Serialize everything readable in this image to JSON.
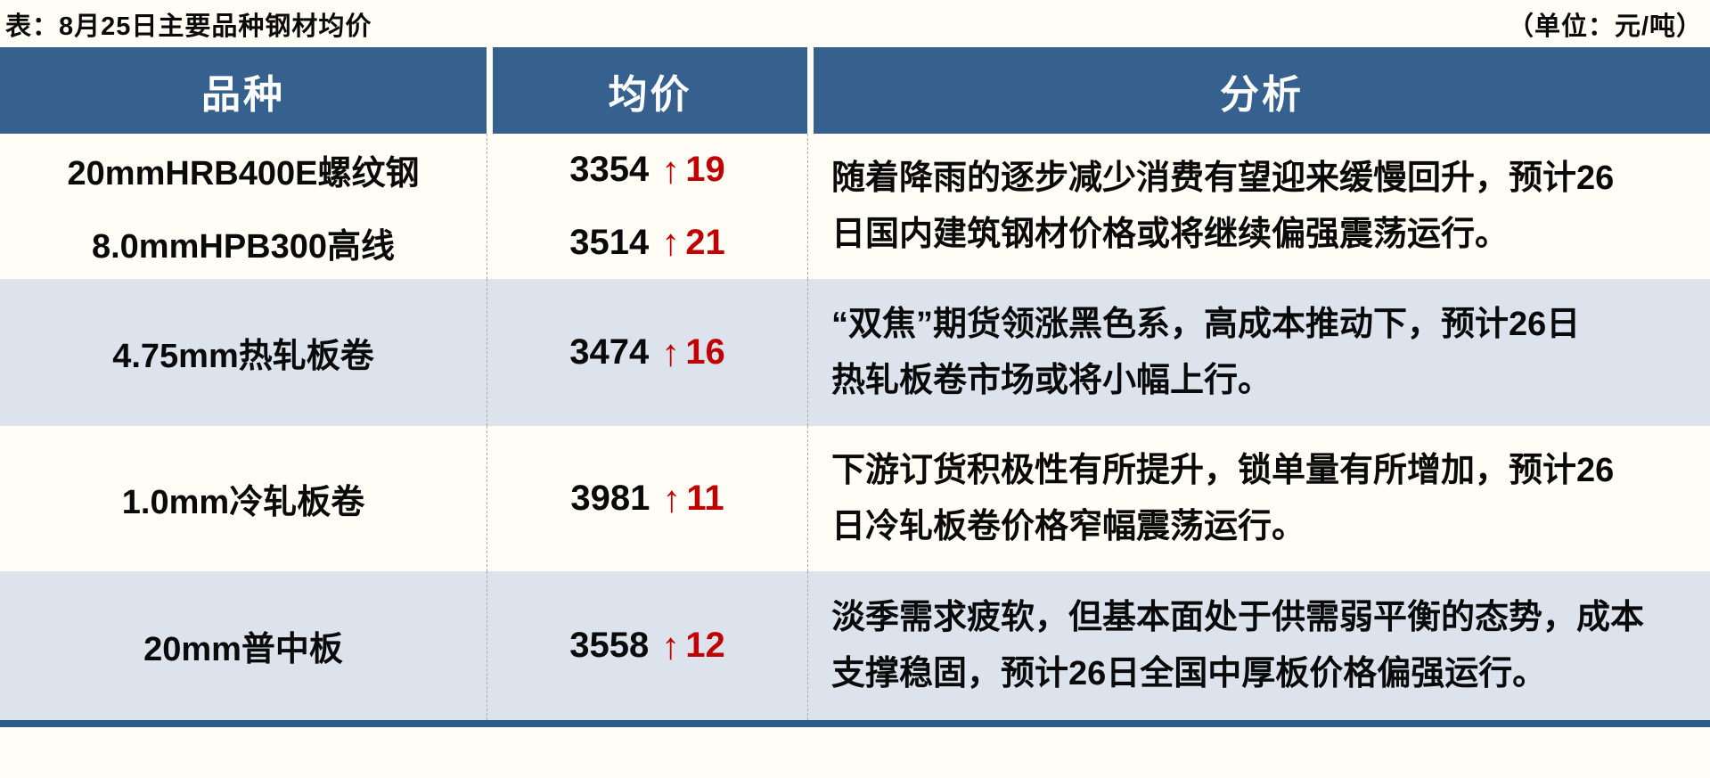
{
  "page": {
    "title": "表：8月25日主要品种钢材均价",
    "unit_label": "（单位：元/吨）"
  },
  "table": {
    "headers": {
      "variety": "品种",
      "price": "均价",
      "analysis": "分析"
    },
    "up_arrow_icon": "↑",
    "rows": [
      {
        "products": [
          {
            "name": "20mmHRB400E螺纹钢",
            "price": "3354",
            "change": "19"
          },
          {
            "name": "8.0mmHPB300高线",
            "price": "3514",
            "change": "21"
          }
        ],
        "analysis_lines": [
          "随着降雨的逐步减少消费有望迎来缓慢回升，预计26",
          "日国内建筑钢材价格或将继续偏强震荡运行。"
        ]
      },
      {
        "products": [
          {
            "name": "4.75mm热轧板卷",
            "price": "3474",
            "change": "16"
          }
        ],
        "analysis_lines": [
          "“双焦”期货领涨黑色系，高成本推动下，预计26日",
          "热轧板卷市场或将小幅上行。"
        ]
      },
      {
        "products": [
          {
            "name": "1.0mm冷轧板卷",
            "price": "3981",
            "change": "11"
          }
        ],
        "analysis_lines": [
          "下游订货积极性有所提升，锁单量有所增加，预计26",
          "日冷轧板卷价格窄幅震荡运行。"
        ]
      },
      {
        "products": [
          {
            "name": "20mm普中板",
            "price": "3558",
            "change": "12"
          }
        ],
        "analysis_lines": [
          "淡季需求疲软，但基本面处于供需弱平衡的态势，成本",
          "支撑稳固，预计26日全国中厚板价格偏强运行。"
        ]
      }
    ]
  },
  "colors": {
    "header_bg": "#36618F",
    "band_blue": "#DCE3ED",
    "band_cream": "#FFFDF5",
    "accent_red": "#C00000",
    "bottom_rule": "#2E5A87",
    "divider_gray": "#ADADAD",
    "text_black": "#0A0A0A"
  }
}
